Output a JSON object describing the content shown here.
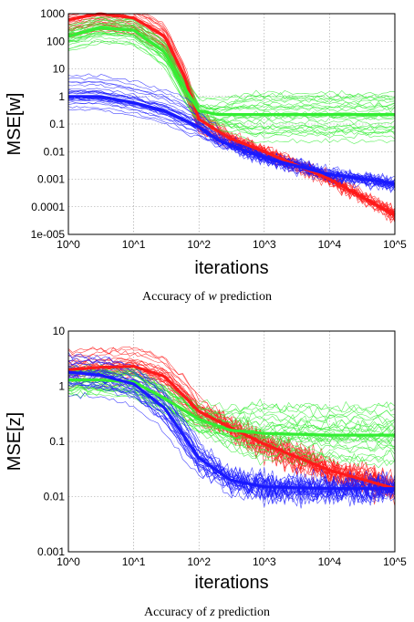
{
  "colors": {
    "red": "#ff1a1a",
    "green": "#33ee33",
    "blue": "#1a1aff",
    "grid": "#9a9a9a"
  },
  "chart_data": [
    {
      "type": "line",
      "title": "",
      "xlabel": "iterations",
      "ylabel": "MSE[w]",
      "xscale": "log",
      "yscale": "log",
      "xlim": [
        1,
        100000
      ],
      "ylim": [
        1e-05,
        1000
      ],
      "grid": true,
      "x_tick_labels": [
        "10^0",
        "10^1",
        "10^2",
        "10^3",
        "10^4",
        "10^5"
      ],
      "y_tick_labels": [
        "1e-005",
        "0.0001",
        "0.001",
        "0.01",
        "0.1",
        "1",
        "10",
        "100",
        "1000"
      ],
      "caption": {
        "prefix": "Accuracy of ",
        "var": "w",
        "suffix": " prediction"
      },
      "series": [
        {
          "color": "red",
          "x": [
            1,
            3,
            10,
            30,
            60,
            100,
            300,
            1000,
            10000,
            100000
          ],
          "y": [
            600,
            1000,
            700,
            150,
            5,
            0.15,
            0.03,
            0.01,
            0.001,
            5e-05
          ]
        },
        {
          "color": "green",
          "x": [
            1,
            3,
            10,
            30,
            60,
            100,
            200,
            1000,
            100000
          ],
          "y": [
            150,
            300,
            250,
            40,
            2,
            0.3,
            0.22,
            0.22,
            0.22
          ]
        },
        {
          "color": "blue",
          "x": [
            1,
            3,
            10,
            30,
            100,
            200,
            1000,
            10000,
            100000
          ],
          "y": [
            1,
            1,
            0.6,
            0.3,
            0.08,
            0.025,
            0.006,
            0.0015,
            0.0007
          ]
        }
      ]
    },
    {
      "type": "line",
      "title": "",
      "xlabel": "iterations",
      "ylabel": "MSE[z]",
      "xscale": "log",
      "yscale": "log",
      "xlim": [
        1,
        100000
      ],
      "ylim": [
        0.001,
        10
      ],
      "grid": true,
      "x_tick_labels": [
        "10^0",
        "10^1",
        "10^2",
        "10^3",
        "10^4",
        "10^5"
      ],
      "y_tick_labels": [
        "0.001",
        "0.01",
        "0.1",
        "1",
        "10"
      ],
      "caption": {
        "prefix": "Accuracy of ",
        "var": "z",
        "suffix": " prediction"
      },
      "series": [
        {
          "color": "red",
          "x": [
            1,
            3,
            10,
            30,
            100,
            300,
            1000,
            10000,
            100000
          ],
          "y": [
            2,
            2.2,
            2.3,
            1.5,
            0.35,
            0.18,
            0.09,
            0.03,
            0.014
          ]
        },
        {
          "color": "green",
          "x": [
            1,
            3,
            10,
            30,
            100,
            300,
            1000,
            10000,
            100000
          ],
          "y": [
            1.3,
            1.3,
            1.2,
            0.6,
            0.25,
            0.16,
            0.14,
            0.13,
            0.13
          ]
        },
        {
          "color": "blue",
          "x": [
            1,
            3,
            10,
            30,
            100,
            300,
            1000,
            10000,
            100000
          ],
          "y": [
            1.8,
            1.6,
            1.1,
            0.4,
            0.05,
            0.02,
            0.015,
            0.014,
            0.014
          ]
        }
      ]
    }
  ]
}
